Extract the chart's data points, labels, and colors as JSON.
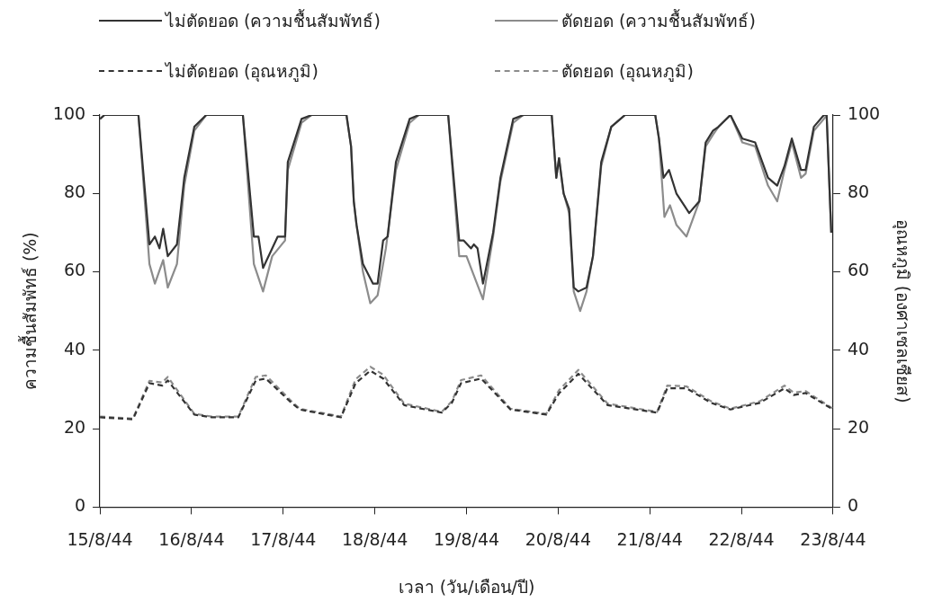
{
  "chart_data": {
    "type": "line",
    "xlabel": "เวลา (วัน/เดือน/ปี)",
    "ylabel": "ความชื้นสัมพัทธ์ (%)",
    "y2label": "อุณหภูมิ (องศาเซลเซียส)",
    "xlim": [
      "--08-15",
      "--08-23"
    ],
    "xticks": [
      {
        "value": "--08-15",
        "label": "15/8/44"
      },
      {
        "value": "--08-16",
        "label": "16/8/44"
      },
      {
        "value": "--08-17",
        "label": "17/8/44"
      },
      {
        "value": "--08-18",
        "label": "18/8/44"
      },
      {
        "value": "--08-19",
        "label": "19/8/44"
      },
      {
        "value": "--08-20",
        "label": "20/8/44"
      },
      {
        "value": "--08-21",
        "label": "21/8/44"
      },
      {
        "value": "--08-22",
        "label": "22/8/44"
      },
      {
        "value": "--08-23",
        "label": "23/8/44"
      }
    ],
    "ylim": [
      0,
      100
    ],
    "yticks": [
      0,
      20,
      40,
      60,
      80,
      100
    ],
    "y2lim": [
      0,
      100
    ],
    "y2ticks": [
      0,
      20,
      40,
      60,
      80,
      100
    ],
    "grid": false,
    "legend": "top",
    "marker": "none",
    "series": [
      {
        "name": "ไม่ตัดยอด (ความชื้นสัมพัทธ์)",
        "color": "#333333",
        "line_style": "solid",
        "x": [
          "--08-15T00:00",
          "--08-15T01:12",
          "--08-15T10:05",
          "--08-15T12:58",
          "--08-15T14:24",
          "--08-15T15:36",
          "--08-15T16:34",
          "--08-15T17:46",
          "--08-15T20:10",
          "--08-15T22:05",
          "--08-16T00:43",
          "--08-16T03:50",
          "--08-16T13:26",
          "--08-16T16:19",
          "--08-16T17:31",
          "--08-16T18:43",
          "--08-16T22:34",
          "--08-17T00:29",
          "--08-17T01:12",
          "--08-17T04:48",
          "--08-17T07:26",
          "--08-17T16:34",
          "--08-17T17:46",
          "--08-17T18:29",
          "--08-17T19:12",
          "--08-17T20:53",
          "--08-17T23:31",
          "--08-18T00:43",
          "--08-18T02:10",
          "--08-18T03:22",
          "--08-18T05:31",
          "--08-18T09:07",
          "--08-18T11:31",
          "--08-18T19:12",
          "--08-18T22:05",
          "--08-18T23:17",
          "--08-19T01:12",
          "--08-19T01:55",
          "--08-19T02:53",
          "--08-19T04:19",
          "--08-19T06:58",
          "--08-19T08:53",
          "--08-19T12:14",
          "--08-19T14:53",
          "--08-19T22:19",
          "--08-19T23:31",
          "--08-20T00:14",
          "--08-20T01:26",
          "--08-20T02:53",
          "--08-20T04:05",
          "--08-20T05:17",
          "--08-20T07:26",
          "--08-20T09:07",
          "--08-20T11:17",
          "--08-20T13:55",
          "--08-20T17:31",
          "--08-21T01:26",
          "--08-21T02:24",
          "--08-21T03:36",
          "--08-21T05:02",
          "--08-21T06:58",
          "--08-21T10:19",
          "--08-21T12:58",
          "--08-21T14:38",
          "--08-21T16:34",
          "--08-21T18:00",
          "--08-21T21:07",
          "--08-22T00:14",
          "--08-22T03:36",
          "--08-22T06:58",
          "--08-22T09:22",
          "--08-22T11:17",
          "--08-22T13:12",
          "--08-22T15:36",
          "--08-22T16:48",
          "--08-22T18:58",
          "--08-22T21:36",
          "--08-22T22:19",
          "--08-22T23:31"
        ],
        "values": [
          99,
          100,
          100,
          67,
          69,
          66,
          71,
          64,
          67,
          84,
          97,
          100,
          100,
          69,
          69,
          61,
          69,
          69,
          88,
          99,
          100,
          100,
          92,
          78,
          72,
          62,
          57,
          57,
          68,
          69,
          88,
          99,
          100,
          100,
          68,
          68,
          66,
          67,
          66,
          57,
          70,
          84,
          99,
          100,
          100,
          84,
          89,
          80,
          76,
          56,
          55,
          56,
          64,
          88,
          97,
          100,
          100,
          94,
          84,
          86,
          80,
          75,
          78,
          93,
          96,
          97,
          100,
          94,
          93,
          84,
          82,
          87,
          94,
          86,
          86,
          97,
          100,
          100,
          70
        ]
      },
      {
        "name": "ตัดยอด (ความชื้นสัมพัทธ์)",
        "color": "#8c8c8c",
        "line_style": "solid",
        "x": [
          "--08-15T00:00",
          "--08-15T01:12",
          "--08-15T10:05",
          "--08-15T12:58",
          "--08-15T14:24",
          "--08-15T16:34",
          "--08-15T17:46",
          "--08-15T20:10",
          "--08-15T22:05",
          "--08-16T00:43",
          "--08-16T03:50",
          "--08-16T13:26",
          "--08-16T16:19",
          "--08-16T18:43",
          "--08-16T21:07",
          "--08-17T00:29",
          "--08-17T01:12",
          "--08-17T04:48",
          "--08-17T07:26",
          "--08-17T16:34",
          "--08-17T17:46",
          "--08-17T18:29",
          "--08-17T19:12",
          "--08-17T20:53",
          "--08-17T22:48",
          "--08-18T00:43",
          "--08-18T02:53",
          "--08-18T05:31",
          "--08-18T09:07",
          "--08-18T11:31",
          "--08-18T19:12",
          "--08-18T22:05",
          "--08-19T00:00",
          "--08-19T04:19",
          "--08-19T06:58",
          "--08-19T08:53",
          "--08-19T12:14",
          "--08-19T14:53",
          "--08-19T22:19",
          "--08-19T23:31",
          "--08-20T00:14",
          "--08-20T01:26",
          "--08-20T02:53",
          "--08-20T04:05",
          "--08-20T05:46",
          "--08-20T07:26",
          "--08-20T09:07",
          "--08-20T11:17",
          "--08-20T13:55",
          "--08-20T17:31",
          "--08-21T01:26",
          "--08-21T02:24",
          "--08-21T03:50",
          "--08-21T05:17",
          "--08-21T06:58",
          "--08-21T09:36",
          "--08-21T12:58",
          "--08-21T14:38",
          "--08-21T16:34",
          "--08-21T18:00",
          "--08-21T21:07",
          "--08-22T00:14",
          "--08-22T03:36",
          "--08-22T06:58",
          "--08-22T09:22",
          "--08-22T11:17",
          "--08-22T13:12",
          "--08-22T15:36",
          "--08-22T16:48",
          "--08-22T18:58",
          "--08-22T21:36",
          "--08-22T22:19",
          "--08-22T23:31"
        ],
        "values": [
          99,
          100,
          100,
          62,
          57,
          63,
          56,
          62,
          82,
          96,
          100,
          100,
          62,
          55,
          64,
          68,
          86,
          98,
          100,
          100,
          92,
          78,
          72,
          60,
          52,
          54,
          66,
          86,
          98,
          100,
          100,
          64,
          64,
          53,
          69,
          83,
          98,
          100,
          100,
          84,
          89,
          80,
          75,
          55,
          50,
          55,
          64,
          87,
          97,
          100,
          100,
          94,
          74,
          77,
          72,
          69,
          78,
          92,
          95,
          97,
          100,
          93,
          92,
          82,
          78,
          86,
          93,
          84,
          85,
          96,
          99,
          100,
          70
        ]
      },
      {
        "name": "ไม่ตัดยอด (อุณหภูมิ)",
        "color": "#333333",
        "line_style": "dashed",
        "axis": "y2",
        "x": [
          "--08-15T00:00",
          "--08-15T08:38",
          "--08-15T12:58",
          "--08-15T16:19",
          "--08-15T17:46",
          "--08-16T00:43",
          "--08-16T05:17",
          "--08-16T12:14",
          "--08-16T16:48",
          "--08-16T19:26",
          "--08-17T02:10",
          "--08-17T04:19",
          "--08-17T15:07",
          "--08-17T18:58",
          "--08-17T22:48",
          "--08-18T02:10",
          "--08-18T07:41",
          "--08-18T17:31",
          "--08-18T20:10",
          "--08-18T22:34",
          "--08-19T03:50",
          "--08-19T11:31",
          "--08-19T20:53",
          "--08-20T00:14",
          "--08-20T05:17",
          "--08-20T12:58",
          "--08-21T01:55",
          "--08-21T04:34",
          "--08-21T09:36",
          "--08-21T16:05",
          "--08-21T21:07",
          "--08-22T04:48",
          "--08-22T11:17",
          "--08-22T13:41",
          "--08-22T16:48",
          "--08-23T00:00"
        ],
        "values": [
          22.9,
          22.4,
          31.6,
          31,
          32.3,
          23.6,
          22.9,
          22.9,
          32.3,
          32.8,
          26.6,
          24.9,
          22.9,
          31.6,
          34.8,
          32.8,
          26,
          24.1,
          26.6,
          31.6,
          32.8,
          24.9,
          23.6,
          29,
          34,
          26,
          24.1,
          30.3,
          30.3,
          26.6,
          24.9,
          26.6,
          30.3,
          28.6,
          29.1,
          24.9
        ]
      },
      {
        "name": "ตัดยอด (อุณหภูมิ)",
        "color": "#8c8c8c",
        "line_style": "dashed",
        "axis": "y2",
        "x": [
          "--08-15T00:00",
          "--08-15T08:38",
          "--08-15T12:58",
          "--08-15T16:19",
          "--08-15T17:46",
          "--08-16T00:43",
          "--08-16T05:17",
          "--08-16T12:14",
          "--08-16T16:48",
          "--08-16T19:26",
          "--08-17T02:10",
          "--08-17T04:19",
          "--08-17T15:07",
          "--08-17T18:58",
          "--08-17T22:48",
          "--08-18T02:10",
          "--08-18T07:41",
          "--08-18T17:31",
          "--08-18T20:10",
          "--08-18T22:34",
          "--08-19T03:50",
          "--08-19T11:31",
          "--08-19T20:53",
          "--08-20T00:14",
          "--08-20T05:17",
          "--08-20T12:58",
          "--08-21T01:55",
          "--08-21T04:34",
          "--08-21T09:36",
          "--08-21T16:05",
          "--08-21T21:07",
          "--08-22T04:48",
          "--08-22T11:17",
          "--08-22T13:41",
          "--08-22T16:48",
          "--08-23T00:00"
        ],
        "values": [
          23.1,
          22.6,
          32.2,
          31.8,
          33.2,
          23.8,
          23.1,
          23.1,
          33.2,
          33.6,
          27,
          25.1,
          23.1,
          32.6,
          35.8,
          33.8,
          26.4,
          24.3,
          27,
          32.4,
          33.6,
          25.1,
          23.8,
          29.8,
          35,
          26.4,
          24.3,
          31,
          30.8,
          27,
          25.1,
          27,
          31,
          29.2,
          29.6,
          25.1
        ]
      }
    ]
  }
}
